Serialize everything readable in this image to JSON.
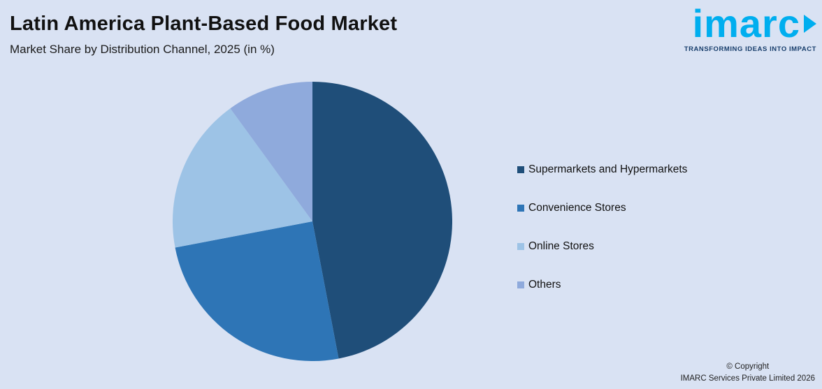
{
  "header": {
    "title": "Latin America Plant-Based Food Market",
    "subtitle": "Market Share by Distribution Channel, 2025 (in %)"
  },
  "logo": {
    "name": "imarc",
    "tagline": "TRANSFORMING IDEAS INTO IMPACT",
    "color": "#00aeef",
    "tagline_color": "#173d6b"
  },
  "theme": {
    "background": "#d9e2f3"
  },
  "chart_data": {
    "type": "pie",
    "title": "Latin America Plant-Based Food Market",
    "subtitle": "Market Share by Distribution Channel, 2025 (in %)",
    "categories": [
      "Supermarkets and Hypermarkets",
      "Convenience Stores",
      "Online Stores",
      "Others"
    ],
    "values": [
      47,
      25,
      18,
      10
    ],
    "colors": [
      "#1f4e79",
      "#2e75b6",
      "#9dc3e6",
      "#8faadc"
    ],
    "start_angle_deg": 0,
    "direction": "clockwise",
    "legend_position": "right",
    "data_labels": false
  },
  "footer": {
    "copyright_line1": "© Copyright",
    "copyright_line2": "IMARC Services Private Limited 2026"
  }
}
